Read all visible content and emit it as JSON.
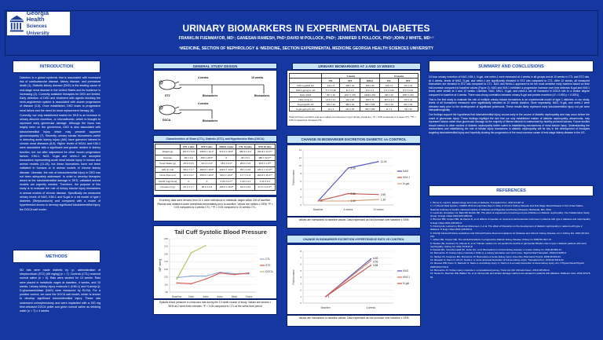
{
  "header": {
    "logo_text_1": "Georgia Health",
    "logo_text_2": "Sciences University",
    "title": "URINARY BIOMARKERS IN EXPERIMENTAL DIABETES",
    "authors": "FRANKLIN FUENMAYOR, MD¹; GANESAN RAMESH, PhD¹;DAVID M POLLOCK, PhD²; JENNIFER S POLLOCK, PhD²;JOHN J WHITE, MD¹·²",
    "affiliation": "¹MEDICINE, SECTION OF NEPHROLOGY & ²MEDICINE, SECTION EXPERIMENTAL MEDICINE GEORGIA HEALTH SCIENCES UNIVERSITY"
  },
  "intro": {
    "heading": "INTRODUCTION",
    "paragraphs": [
      "Diabetes is a global epidemic that is associated with increased risk of cardiovascular disease, kidney disease, and premature death (1). Diabetic kidney disease (DKD) is the leading cause of end-stage renal disease in the United States and its incidence is increasing (2). Currently available therapies for DKD are limited. Early detection of DKD and treatment with agents blocking the renin-angiotensin system is associated with slower progression of disease (3-5). Once established, DKD leads to progressive renal failure and the need for renal replacement therapy (6).",
      "Currently, our only established marker for DKD is an increase in urinary albumin excretion, or microalbumin, which is thought to represent early glomerular damage. Although the focus has largely been on the glomerulus, DKD is also associated with tubulointerstitial injury which may precede apparent glomerulopathy (7). Recently, urinary tubular biomarkers useful in detecting acute kidney injury (AKI) have garnered interest in chronic renal diseases (8,9). Higher levels of NGAL and KIM-1 were associated with a significant and greater decline in kidney function, but not after adjustment for other known progression factors. KIM-1, NAG, N-gal and netrin-1 are accepted biomarkers representing acute renal tubular injury in human and animal models (11-15), but these biomarkers have not been validated in humans or in animal models of chronic kidney disease. Likewise, the role of tubulointerstitial injury in DKD has not been adequately addressed. In order to develop therapies aimed at the tubulointerstitial damage in DKD, validated animal models are urgently needed. Therefore, the purpose of this study is to evaluate the role of kidney tubular injury biomarkers in animal models of chronic disease. Specifically we measured urinary levels of NAG, KIM-1 and N-gal in a rat model of type I diabetes (Streptozotocin) and compared with a model of hypertension known to develop significant tubulointerstitial injury, the DOCA salt model."
    ]
  },
  "methods": {
    "heading": "METHODS",
    "text": "SD rats were made diabetic by i.p. administration of streptozotocin (STZ) (65 mg/kg) (n = 7). Controls (CTL) received normal saline (n = 6). Rats were studied for 10 weeks. Rats were placed in metabolic cages at baseline, 4 weeks, and 10 weeks. Urinary kidney injury molecule-1 (KIM-1) and N-acetyl-β-D-glucosaminidase (NAG) were measured by ELISA. For a positive control, we used the DOCA salt model, which is known to develop significant tubulointerstitial injury. These rats underwent uninephrectomy and were implanted with a 200 mg time-released DOCA pellet and given normal saline as drinking water (n = 7) x 4 weeks."
  },
  "design": {
    "heading": "GENERAL STUDY DESIGN",
    "w4": "4 weeks",
    "w10": "10 weeks",
    "biomarkers": "Biomarkers",
    "stz": "STZ",
    "doca": "DOCA"
  },
  "characteristics": {
    "title": "Characteristics of Sham (CTL), Diabetic (STZ), and Hypertensive Rats (DOCA)",
    "columns": [
      "",
      "CTL 4 wks",
      "STZ 4 wks",
      "DOCA 4 wks",
      "CTL 10 wks",
      "STZ 10 wks"
    ],
    "rows": [
      [
        "Weight (g)",
        "337.6 ± 5.8",
        "308.5 ± 10.1*",
        "374.0 ± 10.0*",
        "380.6 ± 9.4",
        "320.8 ± 14.0**"
      ],
      [
        "Glucose",
        "95 ± 4.0",
        "456 ± 26.5*",
        "0",
        "96 ± 5.1",
        "480 ± 32.2**"
      ],
      [
        "Food Intake (g)",
        "25.0 ± 0.6",
        "30.1 ± 2.0*",
        "18.0 ± 0.0*",
        "25.0 ± 0.6",
        "35.5 ± 1.9**"
      ],
      [
        "H2O In (ml)",
        "38.1 ± 1.7",
        "180.5 ± 19.0*",
        "129.0 ± 13.0*",
        "35.1 ± 0.8",
        "181.1 ± 11.2**"
      ],
      [
        "Urine Flow (ml)",
        "13.3 ± 0.7",
        "155.6 ± 20.0*",
        "90.0 ± 10.0*",
        "17.7 ± 1.6",
        "200.8 ± 15.4**"
      ],
      [
        "UACR (mg/mmol)",
        "0",
        "0",
        "0.00 ± 0.1**",
        "1.30 ± 0.1",
        "1.30 ± 0.1"
      ],
      [
        "Uprotein (mg)",
        "25.1 ± 1.7",
        "28.0 ± 2.6",
        "105.0 ± 16.0*",
        "18.3 ± 0.6",
        "27.5 ± 14.0**"
      ]
    ],
    "note": "Excretory data were derived from 24 h urine collections in metabolic cages within 24h of sacrifice. Plasma was obtained under anesthesia immediately prior to sacrifice. Values are means ± SEM; *P < 0.05 compared to 4 weeks CTL; **P < 0.05 compared to 10 weeks CTL."
  },
  "biomarker_table": {
    "heading": "URINARY BIOMARKERS AT 4 AND 10 WEEKS",
    "group_4": "4 weeks",
    "group_10": "10 weeks",
    "columns": [
      "",
      "CTL",
      "STZ",
      "DOCA",
      "CTL",
      "STZ"
    ],
    "rows": [
      [
        "KIM-1 pg/24h 10²",
        "161 ± 8",
        "498 ± 42",
        "980 ± 80",
        "109 ± 3",
        "170 ± 16"
      ],
      [
        "KIM-1 pg/mg Cr 10²",
        "6.7 ± 0.48",
        "11 ± 1.6",
        "4.8 ± 1.1",
        "6.3 ± 0.26",
        "8.3 ± 0.21"
      ],
      [
        "NAG U/24h",
        "357 ± 26",
        "1617 ± 475",
        "2498 ± 263",
        "360 ± 26",
        "3557 ± 153"
      ],
      [
        "NAG U/mg Cr",
        "21.8 ± 2.1",
        "112 ± 45",
        "380 ± 71",
        "18.5 ± 1.3",
        "176 ± 10"
      ],
      [
        "N-gal pg/24h 10²",
        "162 ± 16",
        "389 ± 32",
        "830 ± 105",
        "153 ± 16",
        "610 ± 63"
      ],
      [
        "N-gal pg/mg Cr 10²",
        "10 ± 4",
        "161 ± 36",
        "350 ± 250",
        "11 ± 1",
        "78 ± 16"
      ]
    ],
    "note": "Total (24 hour) excretion and spot values corrected per mg of urinary creatinine. *P < 0.05 compared to 4 week CTL; **P < 0.05 compared to 10 week CTL."
  },
  "diabetic_chart": {
    "heading": "CHANGE IN BIOMARKER EXCRETION DIABETIC vs CONTROL",
    "caption": "Values are normalized to baseline values. Data expressed as fold increase over baseline ± SEM"
  },
  "hypertensive_chart": {
    "heading": "CHANGE IN BIOMARKER EXCRETION HYPERTENSIVE RATS VS CONTROL",
    "caption": "Values are normalized to baseline values. Data expressed as fold increase over baseline ± SEM"
  },
  "bp_chart": {
    "caption": "Systolic blood pressure in conscious rats during the 10 week course of study. Values are means ± SEM at 2 week time intervals. *P < 0.05 compared to CTL at the same time period"
  },
  "chart_data": [
    {
      "type": "line",
      "title": "Tail Cuff Systolic Blood Pressure",
      "ylabel": "SBP mmHg",
      "xlabel": "",
      "categories": [
        "Baseline",
        "2wks",
        "4wks",
        "6wks",
        "8wks",
        "10wks"
      ],
      "ylim": [
        90,
        230
      ],
      "yticks": [
        90,
        110,
        130,
        150,
        170,
        190,
        210,
        230
      ],
      "grid": true,
      "legend": "right",
      "series": [
        {
          "name": "CTL",
          "color": "#8eaadb",
          "values": [
            128,
            132,
            132,
            142,
            138,
            138
          ]
        },
        {
          "name": "STZ",
          "color": "#d9534f",
          "values": [
            114,
            112,
            124,
            140,
            136,
            140
          ]
        },
        {
          "name": "DOCA",
          "color": "#a9c25d",
          "values": [
            124,
            193,
            212,
            null,
            null,
            null
          ]
        }
      ]
    },
    {
      "type": "line",
      "title": "",
      "ylabel": "Fold Increase",
      "xlabel": "",
      "categories": [
        "Baseline",
        "4 weeks",
        "10 weeks"
      ],
      "ylim": [
        0,
        14
      ],
      "yticks": [
        0,
        2,
        4,
        6,
        8,
        10,
        12,
        14
      ],
      "grid": true,
      "legend": "right",
      "series": [
        {
          "name": "NAG",
          "color": "#4b4fc0",
          "values": [
            1,
            9.39,
            11.04
          ],
          "labels": [
            "1",
            "9.39",
            "11.04"
          ]
        },
        {
          "name": "KIM-1",
          "color": "#c0504d",
          "values": [
            1,
            2.88,
            2.65
          ],
          "labels": [
            "",
            "2.88",
            "2.65"
          ]
        },
        {
          "name": "N-gal",
          "color": "#d99a6c",
          "values": [
            1,
            1.02,
            1.39
          ],
          "labels": [
            "",
            "1.02",
            "1.39"
          ]
        }
      ]
    },
    {
      "type": "line",
      "title": "",
      "ylabel": "Fold Increase",
      "xlabel": "",
      "categories": [
        "Baseline",
        "4 weeks"
      ],
      "ylim": [
        0,
        8
      ],
      "yticks": [
        0,
        1,
        2,
        3,
        4,
        5,
        6,
        7,
        8
      ],
      "grid": true,
      "legend": "right",
      "series": [
        {
          "name": "NAG",
          "color": "#4b4fc0",
          "values": [
            1,
            6.82
          ],
          "labels": [
            "1",
            "6.82"
          ]
        },
        {
          "name": "KIM-1",
          "color": "#d9734f",
          "values": [
            1,
            6.53
          ],
          "labels": [
            "",
            "6.53"
          ]
        },
        {
          "name": "N-gal",
          "color": "#c0504d",
          "values": [
            1,
            5.84
          ],
          "labels": [
            "",
            "5.84"
          ]
        }
      ]
    }
  ],
  "summary": {
    "heading": "SUMMARY AND CONCLUSIONS",
    "paragraphs": [
      "24 hour urinary excretion of NAG, KIM-1, N-gal, and netrin-1 were measured at 4 weeks in all groups and at 10 weeks in CTL and STZ rats. At 4 weeks, levels of NAG, N-gal, and netrin-1 are significantly elevated in STZ rats compared to CTL. After 10 weeks, all measured biomarkers are elevated in STZ rats compared to CTL. NAG and Netrin-1 appeared to be the most sensitive early markers based on their fold-increase compared to baseline values (Figure 2). NAG and KIM-1 exhibited a progressive increase over time whereas N-gal and KIM-1 levels were similar at 4 and 10 weeks. Likewise, NAG, KIM-1, N-gal, and netrin-1 are all increased in DOCA rats to a similar degree compared to baseline at 4 weeks. There was strong correlation between urinary N-gal and protein excretion (r2 = 0.692 p < 0.0001).",
      "This is the first study to evaluate the role of multiple urinary tubular biomarkers in an experimental model of type 1 diabetes. In our study, levels of all biomarkers measured were significantly elevated at 10 weeks duration. More importantly, NAG, N-gal, and netrin-1 were elevated early prior to the development of significant proteinuria. These results likely represent early tubulointerstitial injury not yet seen histopathologically.",
      "Our findings support the hypothesis that tubulointerstitial injury occurs early in the course of diabetic nephropathy and may occur before the onset of glomerular injury. These findings highlight the fact that our only established marker of diabetic nephropathy, albuminuria, may represent tubular rather than glomerular damage as the majority of filtered albumin is reabsorbed by healthy proximal tubules. Future studies should extend to other models of diabetic nephropathy better suited to establishing mechanisms of renal tubular injury. Understanding the mechanisms and establishing the role of tubular injury biomarkers in diabetic nephropathy will be key in the development of therapies targeting tubulointerstitial injury and hopefully slowing the progression of the most common cause of end-stage kidney disease in the US."
    ]
  },
  "references": {
    "heading": "REFERENCES",
    "items": [
      "1. Bruno G, Landi A. Epidemiology and costs of diabetes. Transplant Proc. 2011;43:327-9.",
      "2. U S Renal Data System, USRDS 2010 Annual Data Report: Atlas of Chronic Kidney Disease and End-Stage Renal Disease in the United States, National Institutes of Health, National Institute of Diabetes and Digestive and Kidney Diseases, Bethesda, MD, 2010.",
      "3. Lewis EJ, Hunsicker LG, Bain RP, Rohde RD. The effect of angiotensin-converting-enzyme inhibition on diabetic nephropathy. The Collaborative Study Group. N Engl J Med 1993;329:1456-62.",
      "4. Brenner BM, Cooper ME, de Zeeuw D, et al. Effects of losartan on renal and cardiovascular outcomes in patients with type 2 diabetes and nephropathy. N Engl J Med 2001;345:861-9.",
      "5. Parving HH, Lehnert H, Brochner-Mortensen J, et al. The effect of irbesartan on the development of diabetic nephropathy in patients with type 2 diabetes. N Engl J Med 2001;345:870-8.",
      "6. KDOQI Clinical Practice Guidelines and Clinical Practice Recommendations for Diabetes and Chronic Kidney Disease. Am J Kidney Dis. 2007;49:S12-154.",
      "7. Gilbert RE, Cooper ME. The tubulointerstitium in progressive diabetic kidney disease. Kidney Int 1999;56:1627-37.",
      "8. Nielsen SE, Andersen S, Zdunek D, et al. Tubular markers do not predict the decline in glomerular filtration rate in type 1 diabetic patients with overt nephropathy. Kidney Int. 2011;79:1113-8.",
      "9. Fassett RG, Venuthurupalli SK, Gobe GC, et al. Biomarkers in chronic kidney disease: a review. Kidney Int. 2011;80:806-21.",
      "10. Bonventre JV. Kidney injury molecule-1 (KIM-1): a urinary biomarker and much more. Nephrol Dial Transplant. 2009;24:3265-8.",
      "11. Vaidya VS, Ferguson MA, Bonventre JV. Biomarkers of acute kidney injury. Annu Rev Pharmacol Toxicol. 2008;48:463-93.",
      "12. Ramesh G, Kwon O, Ahn K. Netrin-1: a novel universal biomarker of human kidney injury. Transplant Proc. 2010;42:1519-22.",
      "13. Reeves WB, Kwon O, Ramesh G. Netrin-1 and kidney injury. II. Netrin-1 is an early biomarker of acute kidney injury. Am J Physiol Renal Physiol. 2008;294:F731-8.",
      "14. Bonventre JV. Kidney injury molecule-1: a translational journey. Trans Am Clin Climatol Assoc. 2014;125:293-9.",
      "15. Nauta FL, Boertien WE, Bakker SJ, et al. Glomerular and tubular damage markers are elevated in patients with diabetes. Diabetes Care. 2011;34:975-81."
    ]
  }
}
